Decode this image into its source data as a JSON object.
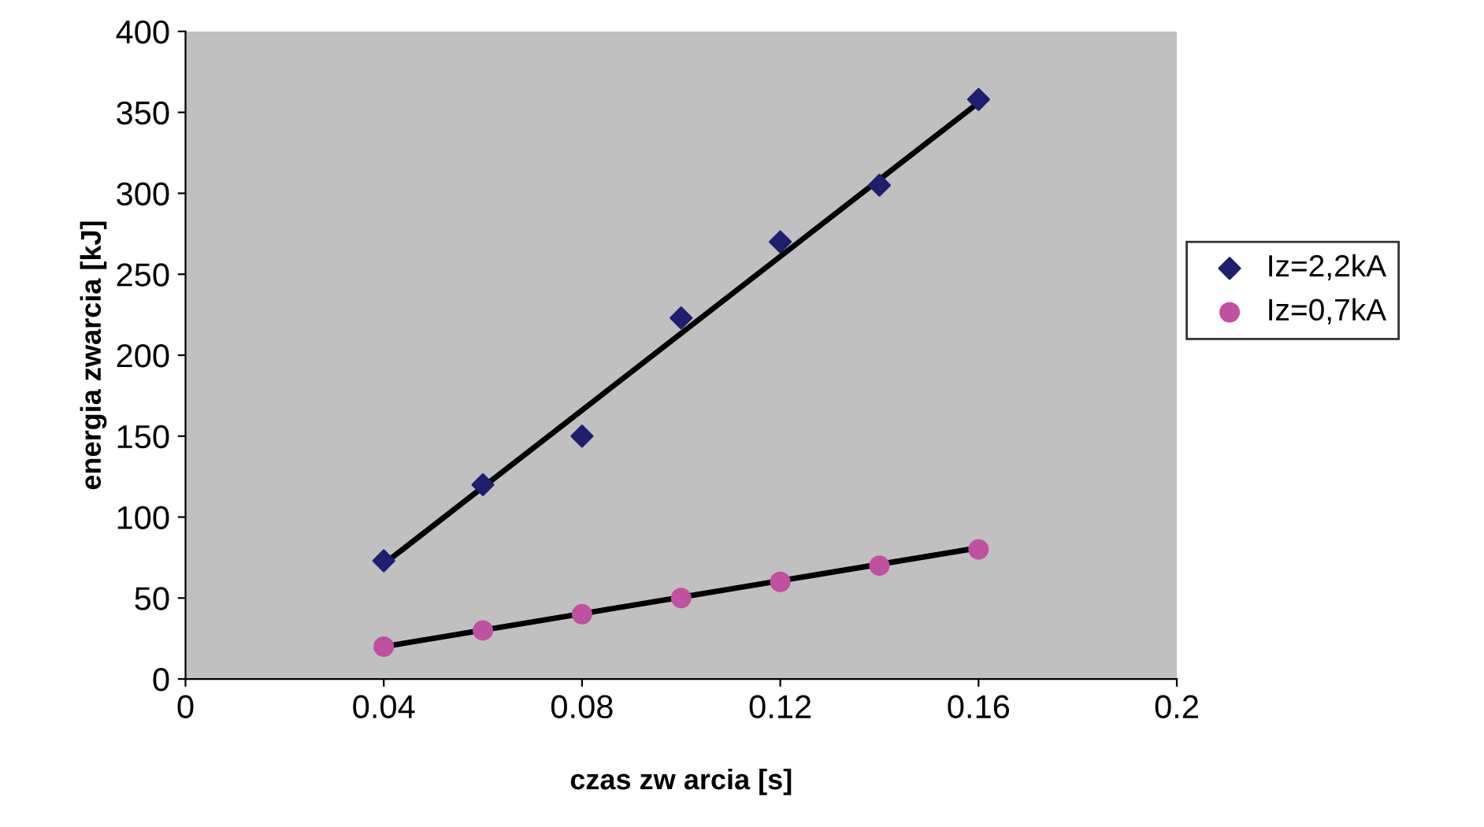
{
  "chart_data": {
    "type": "scatter",
    "xlabel": "czas zw arcia [s]",
    "ylabel": "energia zwarcia [kJ]",
    "xlim": [
      0,
      0.2
    ],
    "ylim": [
      0,
      400
    ],
    "xticks": [
      0,
      0.04,
      0.08,
      0.12,
      0.16,
      0.2
    ],
    "yticks": [
      0,
      50,
      100,
      150,
      200,
      250,
      300,
      350,
      400
    ],
    "grid": false,
    "legend": "right",
    "series": [
      {
        "name": "Iz=2,2kA",
        "marker": "diamond",
        "color": "#1f1f6e",
        "x": [
          0.04,
          0.06,
          0.08,
          0.1,
          0.12,
          0.14,
          0.16
        ],
        "values": [
          73,
          120,
          150,
          223,
          270,
          305,
          358
        ]
      },
      {
        "name": "Iz=0,7kA",
        "marker": "circle",
        "color": "#c050a0",
        "x": [
          0.04,
          0.06,
          0.08,
          0.1,
          0.12,
          0.14,
          0.16
        ],
        "values": [
          20,
          30,
          40,
          50,
          60,
          70,
          80
        ]
      },
      {
        "type": "line",
        "marker": "none",
        "color": "#000000",
        "x": [
          0.04,
          0.16
        ],
        "values": [
          71,
          356
        ]
      },
      {
        "type": "line",
        "marker": "none",
        "color": "#000000",
        "x": [
          0.04,
          0.16
        ],
        "values": [
          20,
          81
        ]
      }
    ]
  }
}
